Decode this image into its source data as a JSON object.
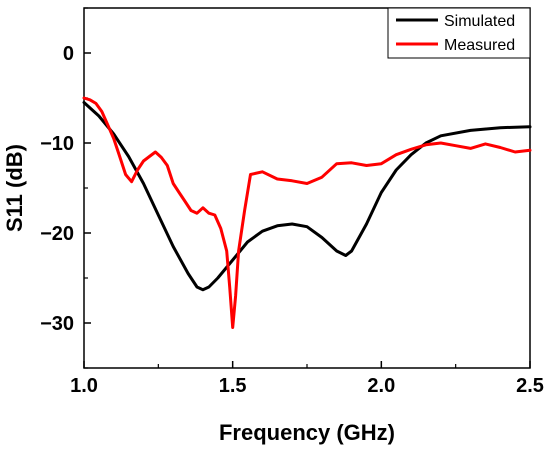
{
  "chart_data": {
    "type": "line",
    "title": "",
    "xlabel": "Frequency (GHz)",
    "ylabel": "S11 (dB)",
    "xlim": [
      1.0,
      2.5
    ],
    "ylim": [
      -35,
      5
    ],
    "x_ticks": [
      1.0,
      1.5,
      2.0,
      2.5
    ],
    "x_tick_labels": [
      "1.0",
      "1.5",
      "2.0",
      "2.5"
    ],
    "y_ticks": [
      0,
      -10,
      -20,
      -30
    ],
    "y_tick_labels": [
      "0",
      "−10",
      "−20",
      "−30"
    ],
    "grid": false,
    "legend_position": "top-right",
    "series": [
      {
        "name": "Simulated",
        "color": "#000000",
        "x": [
          1.0,
          1.05,
          1.1,
          1.15,
          1.2,
          1.25,
          1.3,
          1.35,
          1.38,
          1.4,
          1.42,
          1.45,
          1.5,
          1.55,
          1.6,
          1.65,
          1.7,
          1.75,
          1.8,
          1.85,
          1.88,
          1.9,
          1.95,
          2.0,
          2.05,
          2.1,
          2.15,
          2.2,
          2.3,
          2.4,
          2.5
        ],
        "y": [
          -5.5,
          -7.0,
          -9.0,
          -11.5,
          -14.5,
          -18.0,
          -21.5,
          -24.5,
          -26.0,
          -26.3,
          -26.0,
          -25.0,
          -23.0,
          -21.0,
          -19.8,
          -19.2,
          -19.0,
          -19.3,
          -20.5,
          -22.0,
          -22.5,
          -22.0,
          -19.0,
          -15.5,
          -13.0,
          -11.3,
          -10.0,
          -9.2,
          -8.6,
          -8.3,
          -8.2
        ]
      },
      {
        "name": "Measured",
        "color": "#ff0000",
        "x": [
          1.0,
          1.02,
          1.04,
          1.06,
          1.08,
          1.1,
          1.12,
          1.14,
          1.16,
          1.18,
          1.2,
          1.22,
          1.24,
          1.26,
          1.28,
          1.3,
          1.32,
          1.34,
          1.36,
          1.38,
          1.4,
          1.42,
          1.44,
          1.46,
          1.48,
          1.49,
          1.5,
          1.51,
          1.52,
          1.54,
          1.56,
          1.6,
          1.65,
          1.7,
          1.75,
          1.8,
          1.85,
          1.9,
          1.95,
          2.0,
          2.05,
          2.1,
          2.15,
          2.2,
          2.25,
          2.3,
          2.35,
          2.4,
          2.45,
          2.5
        ],
        "y": [
          -5.0,
          -5.2,
          -5.6,
          -6.5,
          -8.0,
          -9.5,
          -11.5,
          -13.5,
          -14.3,
          -13.0,
          -12.0,
          -11.5,
          -11.0,
          -11.6,
          -12.5,
          -14.5,
          -15.5,
          -16.5,
          -17.5,
          -17.8,
          -17.2,
          -17.8,
          -18.0,
          -19.5,
          -22.0,
          -26.0,
          -30.5,
          -27.0,
          -22.0,
          -17.5,
          -13.5,
          -13.2,
          -14.0,
          -14.2,
          -14.5,
          -13.8,
          -12.3,
          -12.2,
          -12.5,
          -12.3,
          -11.3,
          -10.7,
          -10.2,
          -10.0,
          -10.3,
          -10.6,
          -10.1,
          -10.5,
          -11.0,
          -10.8
        ]
      }
    ]
  }
}
